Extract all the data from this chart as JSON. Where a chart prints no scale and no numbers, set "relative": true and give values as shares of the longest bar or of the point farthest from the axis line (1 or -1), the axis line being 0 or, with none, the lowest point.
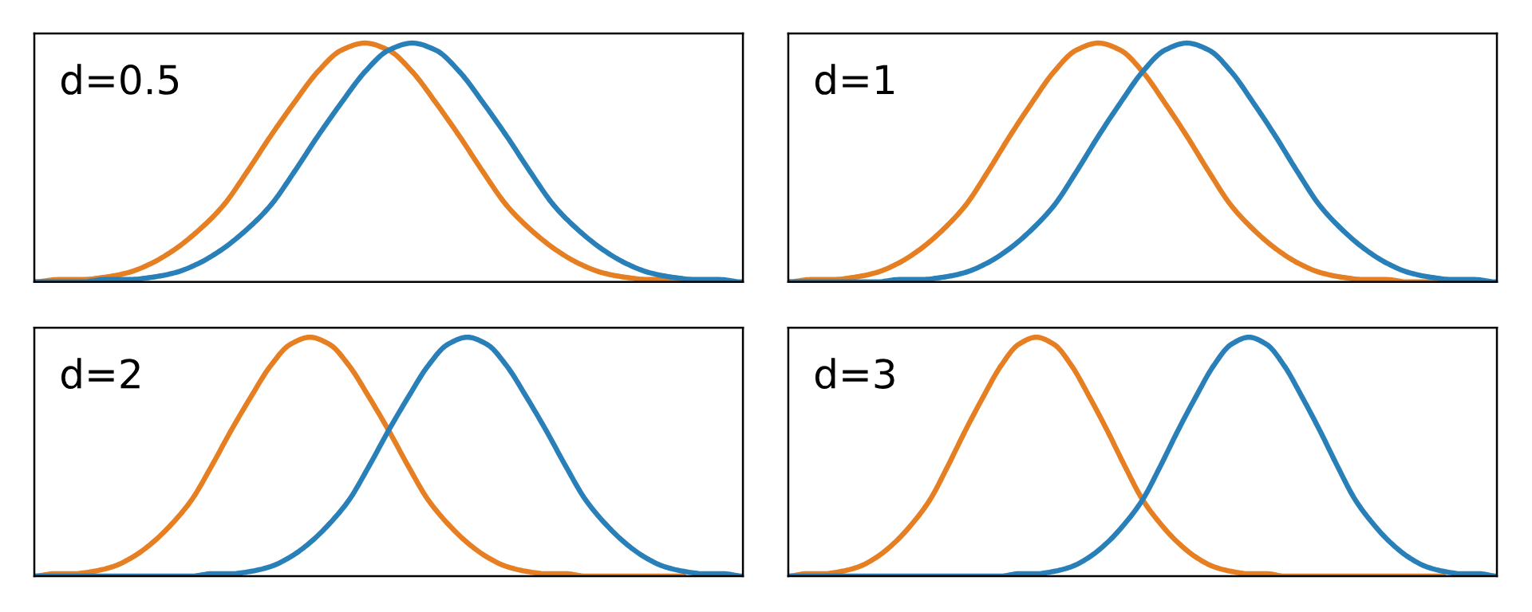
{
  "chart_data": [
    {
      "type": "line",
      "title": "d=0.5",
      "relative": true,
      "categories": [
        null,
        null,
        null,
        null,
        null,
        null,
        null,
        null,
        null,
        null,
        null,
        null,
        null,
        null,
        null,
        null,
        null,
        null,
        null,
        null,
        null,
        null,
        null,
        null,
        null,
        null,
        null,
        null,
        null,
        null,
        null
      ],
      "series": [
        {
          "color": "#e67e22",
          "values": [
            0,
            0.01,
            0.01,
            0.02,
            0.04,
            0.08,
            0.14,
            0.22,
            0.32,
            0.46,
            0.61,
            0.75,
            0.88,
            0.97,
            1,
            0.97,
            0.88,
            0.75,
            0.61,
            0.46,
            0.32,
            0.22,
            0.14,
            0.08,
            0.04,
            0.02,
            0.01,
            0.01,
            0,
            null,
            null
          ]
        },
        {
          "color": "#2980b9",
          "values": [
            0,
            0,
            0,
            0.01,
            0.01,
            0.02,
            0.04,
            0.08,
            0.14,
            0.22,
            0.32,
            0.46,
            0.61,
            0.75,
            0.88,
            0.97,
            1,
            0.97,
            0.88,
            0.75,
            0.61,
            0.46,
            0.32,
            0.22,
            0.14,
            0.08,
            0.04,
            0.02,
            0.01,
            0.01,
            0
          ]
        }
      ]
    },
    {
      "type": "line",
      "title": "d=1",
      "relative": true,
      "categories": [
        null,
        null,
        null,
        null,
        null,
        null,
        null,
        null,
        null,
        null,
        null,
        null,
        null,
        null,
        null,
        null,
        null,
        null,
        null,
        null,
        null,
        null,
        null,
        null,
        null,
        null,
        null,
        null,
        null,
        null,
        null,
        null,
        null
      ],
      "series": [
        {
          "color": "#e67e22",
          "values": [
            0,
            0.01,
            0.01,
            0.02,
            0.04,
            0.08,
            0.14,
            0.22,
            0.32,
            0.46,
            0.61,
            0.75,
            0.88,
            0.97,
            1,
            0.97,
            0.88,
            0.75,
            0.61,
            0.46,
            0.32,
            0.22,
            0.14,
            0.08,
            0.04,
            0.02,
            0.01,
            0.01,
            0,
            0,
            0,
            null,
            null
          ]
        },
        {
          "color": "#2980b9",
          "values": [
            0,
            0,
            0,
            0,
            0,
            0.01,
            0.01,
            0.02,
            0.04,
            0.08,
            0.14,
            0.22,
            0.32,
            0.46,
            0.61,
            0.75,
            0.88,
            0.97,
            1,
            0.97,
            0.88,
            0.75,
            0.61,
            0.46,
            0.32,
            0.22,
            0.14,
            0.08,
            0.04,
            0.02,
            0.01,
            0.01,
            0
          ]
        }
      ]
    },
    {
      "type": "line",
      "title": "d=2",
      "relative": true,
      "categories": [
        null,
        null,
        null,
        null,
        null,
        null,
        null,
        null,
        null,
        null,
        null,
        null,
        null,
        null,
        null,
        null,
        null,
        null,
        null,
        null,
        null,
        null,
        null,
        null,
        null,
        null,
        null,
        null,
        null,
        null,
        null,
        null,
        null,
        null,
        null,
        null,
        null
      ],
      "series": [
        {
          "color": "#e67e22",
          "values": [
            0,
            0.01,
            0.01,
            0.02,
            0.04,
            0.08,
            0.14,
            0.22,
            0.32,
            0.46,
            0.61,
            0.75,
            0.88,
            0.97,
            1,
            0.97,
            0.88,
            0.75,
            0.61,
            0.46,
            0.32,
            0.22,
            0.14,
            0.08,
            0.04,
            0.02,
            0.01,
            0.01,
            0,
            0,
            0,
            0,
            0,
            0,
            null,
            null,
            null
          ]
        },
        {
          "color": "#2980b9",
          "values": [
            0,
            0,
            0,
            0,
            0,
            0,
            0,
            0,
            0,
            0.01,
            0.01,
            0.02,
            0.04,
            0.08,
            0.14,
            0.22,
            0.32,
            0.46,
            0.61,
            0.75,
            0.88,
            0.97,
            1,
            0.97,
            0.88,
            0.75,
            0.61,
            0.46,
            0.32,
            0.22,
            0.14,
            0.08,
            0.04,
            0.02,
            0.01,
            0.01,
            0
          ]
        }
      ]
    },
    {
      "type": "line",
      "title": "d=3",
      "relative": true,
      "categories": [
        null,
        null,
        null,
        null,
        null,
        null,
        null,
        null,
        null,
        null,
        null,
        null,
        null,
        null,
        null,
        null,
        null,
        null,
        null,
        null,
        null,
        null,
        null,
        null,
        null,
        null,
        null,
        null,
        null,
        null,
        null,
        null,
        null,
        null,
        null,
        null,
        null,
        null,
        null,
        null,
        null
      ],
      "series": [
        {
          "color": "#e67e22",
          "values": [
            0,
            0.01,
            0.01,
            0.02,
            0.04,
            0.08,
            0.14,
            0.22,
            0.32,
            0.46,
            0.61,
            0.75,
            0.88,
            0.97,
            1,
            0.97,
            0.88,
            0.75,
            0.61,
            0.46,
            0.32,
            0.22,
            0.14,
            0.08,
            0.04,
            0.02,
            0.01,
            0.01,
            0,
            0,
            0,
            0,
            0,
            0,
            0,
            0,
            0,
            0,
            null,
            null,
            null
          ]
        },
        {
          "color": "#2980b9",
          "values": [
            0,
            0,
            0,
            0,
            0,
            0,
            0,
            0,
            0,
            0,
            0,
            0,
            0,
            0.01,
            0.01,
            0.02,
            0.04,
            0.08,
            0.14,
            0.22,
            0.32,
            0.46,
            0.61,
            0.75,
            0.88,
            0.97,
            1,
            0.97,
            0.88,
            0.75,
            0.61,
            0.46,
            0.32,
            0.22,
            0.14,
            0.08,
            0.04,
            0.02,
            0.01,
            0.01,
            0
          ]
        }
      ]
    }
  ]
}
